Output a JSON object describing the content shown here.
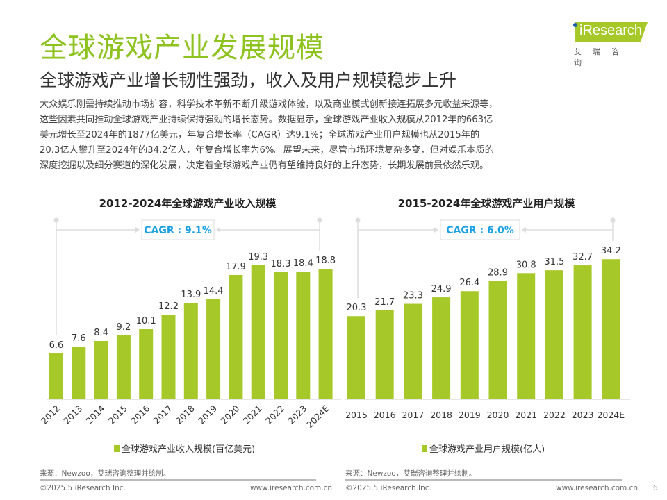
{
  "header": {
    "title": "全球游戏产业发展规模",
    "subtitle": "全球游戏产业增长韧性强劲，收入及用户规模稳步上升",
    "body": "大众娱乐刚需持续推动市场扩容，科学技术革新不断升级游戏体验，以及商业模式创新接连拓展多元收益来源等，这些因素共同推动全球游戏产业持续保持强劲的增长态势。数据显示，全球游戏产业收入规模从2012年的663亿美元增长至2024年的1877亿美元，年复合增长率（CAGR）达9.1%；全球游戏产业用户规模也从2015年的20.3亿人攀升至2024年的34.2亿人，年复合增长率为6%。展望未来，尽管市场环境复杂多变，但对娱乐本质的深度挖掘以及细分赛道的深化发展，决定着全球游戏产业仍有望维持良好的上升态势，长期发展前景依然乐观。"
  },
  "logo": {
    "name": "iResearch",
    "cn": "艾瑞咨询"
  },
  "colors": {
    "bar": "#a7c829",
    "title": "#8dc21f",
    "cagr": "#1ba1e2"
  },
  "chart_data": [
    {
      "type": "bar",
      "title": "2012-2024年全球游戏产业收入规模",
      "annotation": "CAGR : 9.1%",
      "categories": [
        "2012",
        "2013",
        "2014",
        "2015",
        "2016",
        "2017",
        "2018",
        "2019",
        "2020",
        "2021",
        "2022",
        "2023",
        "2024E"
      ],
      "series": [
        {
          "name": "全球游戏产业收入规模(百亿美元)",
          "values": [
            6.6,
            7.6,
            8.4,
            9.2,
            10.1,
            12.2,
            13.9,
            14.4,
            17.9,
            19.3,
            18.3,
            18.4,
            18.8
          ]
        }
      ],
      "xlabel_rotation": "-45deg"
    },
    {
      "type": "bar",
      "title": "2015-2024年全球游戏产业用户规模",
      "annotation": "CAGR : 6.0%",
      "categories": [
        "2015",
        "2016",
        "2017",
        "2018",
        "2019",
        "2020",
        "2021",
        "2022",
        "2023",
        "2024E"
      ],
      "series": [
        {
          "name": "全球游戏产业用户规模(亿人)",
          "values": [
            20.3,
            21.7,
            23.3,
            24.9,
            26.4,
            28.9,
            30.8,
            31.5,
            32.7,
            34.2
          ]
        }
      ]
    }
  ],
  "footer": {
    "source_left": "来源：Newzoo，艾瑞咨询整理并绘制。",
    "source_right": "来源：Newzoo，艾瑞咨询整理并绘制。",
    "copyright": "©2025.5 iResearch Inc.",
    "url": "www.iresearch.com.cn",
    "page": "6"
  }
}
